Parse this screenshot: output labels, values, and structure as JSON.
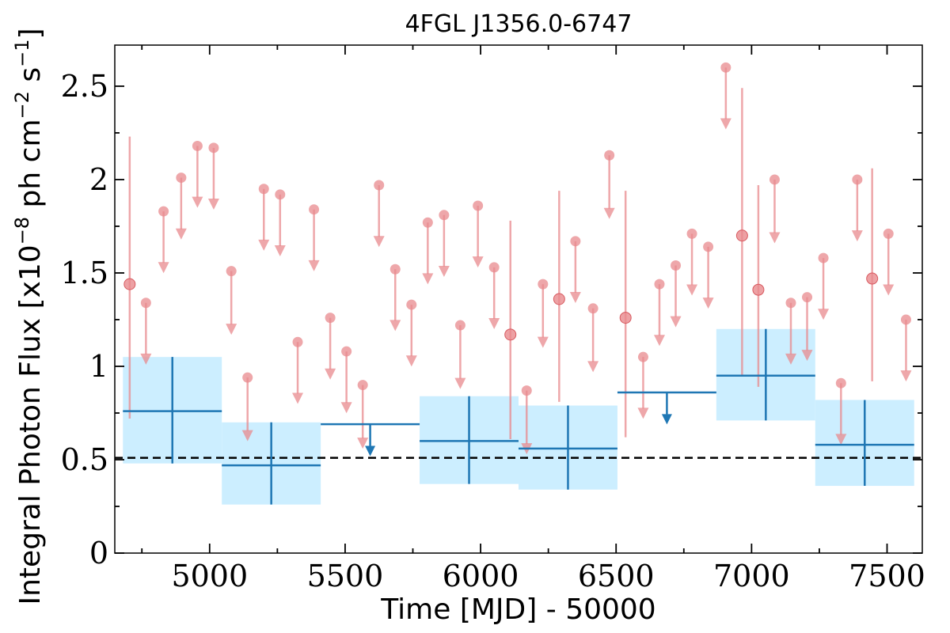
{
  "chart_data": {
    "type": "scatter",
    "title": "4FGL J1356.0-6747",
    "xlabel": "Time [MJD] - 50000",
    "ylabel": "Integral Photon Flux [x10",
    "ylabel_exp1": "−8",
    "ylabel_mid": " ph cm",
    "ylabel_exp2": "−2",
    "ylabel_mid2": " s",
    "ylabel_exp3": "−1",
    "ylabel_end": "]",
    "xlim": [
      4650,
      7630
    ],
    "ylim": [
      0,
      2.72
    ],
    "xticks": [
      5000,
      5500,
      6000,
      6500,
      7000,
      7500
    ],
    "xtick_labels": [
      "5000",
      "5500",
      "6000",
      "6500",
      "7000",
      "7500"
    ],
    "yticks": [
      0,
      0.5,
      1,
      1.5,
      2,
      2.5
    ],
    "ytick_labels": [
      "0",
      "0.5",
      "1",
      "1.5",
      "2",
      "2.5"
    ],
    "grid": false,
    "baseline": {
      "y": 0.51,
      "style": "dashed",
      "color": "#000000"
    },
    "colors": {
      "fine": "#e8898d",
      "coarse": "#1f77b4",
      "band": "#cceeff"
    },
    "fine_bins": [
      {
        "x": 4705,
        "y": 1.44,
        "ylo": 0.72,
        "yhi": 2.23,
        "ul": false
      },
      {
        "x": 4765,
        "y": 1.34,
        "ul": true,
        "arrow_to": 1.03
      },
      {
        "x": 4830,
        "y": 1.83,
        "ul": true,
        "arrow_to": 1.52
      },
      {
        "x": 4895,
        "y": 2.01,
        "ul": true,
        "arrow_to": 1.7
      },
      {
        "x": 4955,
        "y": 2.18,
        "ul": true,
        "arrow_to": 1.87
      },
      {
        "x": 5015,
        "y": 2.17,
        "ul": true,
        "arrow_to": 1.86
      },
      {
        "x": 5080,
        "y": 1.51,
        "ul": true,
        "arrow_to": 1.19
      },
      {
        "x": 5140,
        "y": 0.94,
        "ul": true,
        "arrow_to": 0.62
      },
      {
        "x": 5200,
        "y": 1.95,
        "ul": true,
        "arrow_to": 1.64
      },
      {
        "x": 5260,
        "y": 1.92,
        "ul": true,
        "arrow_to": 1.61
      },
      {
        "x": 5325,
        "y": 1.13,
        "ul": true,
        "arrow_to": 0.82
      },
      {
        "x": 5385,
        "y": 1.84,
        "ul": true,
        "arrow_to": 1.53
      },
      {
        "x": 5445,
        "y": 1.26,
        "ul": true,
        "arrow_to": 0.95
      },
      {
        "x": 5505,
        "y": 1.08,
        "ul": true,
        "arrow_to": 0.77
      },
      {
        "x": 5565,
        "y": 0.9,
        "ul": true,
        "arrow_to": 0.58
      },
      {
        "x": 5625,
        "y": 1.97,
        "ul": true,
        "arrow_to": 1.66
      },
      {
        "x": 5685,
        "y": 1.52,
        "ul": true,
        "arrow_to": 1.21
      },
      {
        "x": 5745,
        "y": 1.33,
        "ul": true,
        "arrow_to": 1.02
      },
      {
        "x": 5805,
        "y": 1.77,
        "ul": true,
        "arrow_to": 1.46
      },
      {
        "x": 5865,
        "y": 1.81,
        "ul": true,
        "arrow_to": 1.5
      },
      {
        "x": 5925,
        "y": 1.22,
        "ul": true,
        "arrow_to": 0.9
      },
      {
        "x": 5990,
        "y": 1.86,
        "ul": true,
        "arrow_to": 1.55
      },
      {
        "x": 6050,
        "y": 1.53,
        "ul": true,
        "arrow_to": 1.22
      },
      {
        "x": 6110,
        "y": 1.17,
        "ylo": 0.61,
        "yhi": 1.78,
        "ul": false
      },
      {
        "x": 6170,
        "y": 0.87,
        "ul": true,
        "arrow_to": 0.55
      },
      {
        "x": 6230,
        "y": 1.44,
        "ul": true,
        "arrow_to": 1.12
      },
      {
        "x": 6290,
        "y": 1.36,
        "ylo": 0.81,
        "yhi": 1.94,
        "ul": false
      },
      {
        "x": 6350,
        "y": 1.67,
        "ul": true,
        "arrow_to": 1.36
      },
      {
        "x": 6415,
        "y": 1.31,
        "ul": true,
        "arrow_to": 0.99
      },
      {
        "x": 6475,
        "y": 2.13,
        "ul": true,
        "arrow_to": 1.81
      },
      {
        "x": 6535,
        "y": 1.26,
        "ylo": 0.62,
        "yhi": 1.94,
        "ul": false
      },
      {
        "x": 6600,
        "y": 1.05,
        "ul": true,
        "arrow_to": 0.74
      },
      {
        "x": 6660,
        "y": 1.44,
        "ul": true,
        "arrow_to": 1.13
      },
      {
        "x": 6720,
        "y": 1.54,
        "ul": true,
        "arrow_to": 1.23
      },
      {
        "x": 6780,
        "y": 1.71,
        "ul": true,
        "arrow_to": 1.4
      },
      {
        "x": 6840,
        "y": 1.64,
        "ul": true,
        "arrow_to": 1.33
      },
      {
        "x": 6905,
        "y": 2.6,
        "ul": true,
        "arrow_to": 2.29
      },
      {
        "x": 6965,
        "y": 1.7,
        "ylo": 0.95,
        "yhi": 2.49,
        "ul": false
      },
      {
        "x": 7025,
        "y": 1.41,
        "ylo": 0.89,
        "yhi": 1.97,
        "ul": false
      },
      {
        "x": 7085,
        "y": 2.0,
        "ul": true,
        "arrow_to": 1.68
      },
      {
        "x": 7145,
        "y": 1.34,
        "ul": true,
        "arrow_to": 1.03
      },
      {
        "x": 7205,
        "y": 1.37,
        "ul": true,
        "arrow_to": 1.05
      },
      {
        "x": 7265,
        "y": 1.58,
        "ul": true,
        "arrow_to": 1.27
      },
      {
        "x": 7330,
        "y": 0.91,
        "ul": true,
        "arrow_to": 0.6
      },
      {
        "x": 7390,
        "y": 2.0,
        "ul": true,
        "arrow_to": 1.69
      },
      {
        "x": 7445,
        "y": 1.47,
        "ylo": 0.92,
        "yhi": 2.06,
        "ul": false
      },
      {
        "x": 7505,
        "y": 1.71,
        "ul": true,
        "arrow_to": 1.4
      },
      {
        "x": 7570,
        "y": 1.25,
        "ul": true,
        "arrow_to": 0.94
      }
    ],
    "coarse_bins": [
      {
        "x0": 4680,
        "x1": 5045,
        "y": 0.76,
        "ylo": 0.48,
        "yhi": 1.05,
        "ul": false
      },
      {
        "x0": 5045,
        "x1": 5410,
        "y": 0.47,
        "ylo": 0.26,
        "yhi": 0.7,
        "ul": false
      },
      {
        "x0": 5410,
        "x1": 5775,
        "y": 0.69,
        "ul": true,
        "arrow_to": 0.54
      },
      {
        "x0": 5775,
        "x1": 6140,
        "y": 0.6,
        "ylo": 0.37,
        "yhi": 0.84,
        "ul": false
      },
      {
        "x0": 6140,
        "x1": 6505,
        "y": 0.56,
        "ylo": 0.34,
        "yhi": 0.79,
        "ul": false
      },
      {
        "x0": 6505,
        "x1": 6870,
        "y": 0.86,
        "ul": true,
        "arrow_to": 0.71
      },
      {
        "x0": 6870,
        "x1": 7235,
        "y": 0.95,
        "ylo": 0.71,
        "yhi": 1.2,
        "ul": false
      },
      {
        "x0": 7235,
        "x1": 7600,
        "y": 0.58,
        "ylo": 0.36,
        "yhi": 0.82,
        "ul": false
      }
    ]
  }
}
